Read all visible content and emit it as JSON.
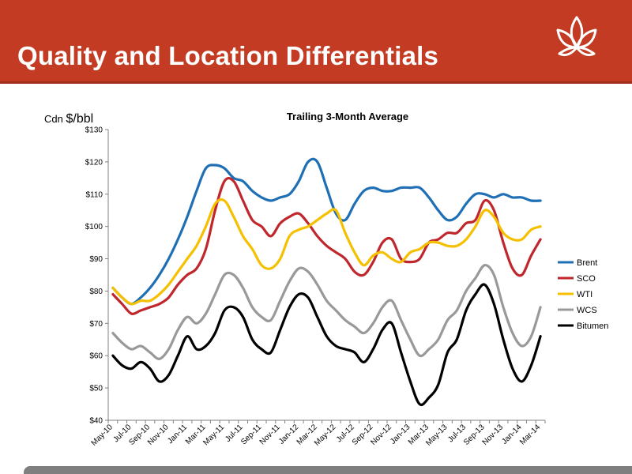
{
  "slide": {
    "title": "Quality and Location Differentials",
    "unit_prefix": "Cdn",
    "unit": "$/bbl",
    "accent_color": "#c23b22"
  },
  "chart_data": {
    "type": "line",
    "title": "Trailing 3-Month Average",
    "ylim": [
      40,
      130
    ],
    "yticks": [
      40,
      50,
      60,
      70,
      80,
      90,
      100,
      110,
      120,
      130
    ],
    "ytick_labels": [
      "$40",
      "$50",
      "$60",
      "$70",
      "$80",
      "$90",
      "$100",
      "$110",
      "$120",
      "$130"
    ],
    "grid": false,
    "legend_position": "right",
    "x_months": [
      "May-10",
      "Jun-10",
      "Jul-10",
      "Aug-10",
      "Sep-10",
      "Oct-10",
      "Nov-10",
      "Dec-10",
      "Jan-11",
      "Feb-11",
      "Mar-11",
      "Apr-11",
      "May-11",
      "Jun-11",
      "Jul-11",
      "Aug-11",
      "Sep-11",
      "Oct-11",
      "Nov-11",
      "Dec-11",
      "Jan-12",
      "Feb-12",
      "Mar-12",
      "Apr-12",
      "May-12",
      "Jun-12",
      "Jul-12",
      "Aug-12",
      "Sep-12",
      "Oct-12",
      "Nov-12",
      "Dec-12",
      "Jan-13",
      "Feb-13",
      "Mar-13",
      "Apr-13",
      "May-13",
      "Jun-13",
      "Jul-13",
      "Aug-13",
      "Sep-13",
      "Oct-13",
      "Nov-13",
      "Dec-13",
      "Jan-14",
      "Feb-14",
      "Mar-14"
    ],
    "x_tick_labels": [
      "May-10",
      "Jul-10",
      "Sep-10",
      "Nov-10",
      "Jan-11",
      "Mar-11",
      "May-11",
      "Jul-11",
      "Sep-11",
      "Nov-11",
      "Jan-12",
      "Mar-12",
      "May-12",
      "Jul-12",
      "Sep-12",
      "Nov-12",
      "Jan-13",
      "Mar-13",
      "May-13",
      "Jul-13",
      "Sep-13",
      "Nov-13",
      "Jan-14",
      "Mar-14"
    ],
    "series": [
      {
        "name": "Brent",
        "color": "#1f6fb5",
        "values": [
          81,
          78,
          76,
          78,
          81,
          85,
          90,
          96,
          103,
          111,
          118,
          119,
          118,
          115,
          114,
          111,
          109,
          108,
          109,
          110,
          114,
          120,
          120,
          112,
          104,
          102,
          107,
          111,
          112,
          111,
          111,
          112,
          112,
          112,
          109,
          105,
          102,
          103,
          107,
          110,
          110,
          109,
          110,
          109,
          109,
          108,
          108
        ]
      },
      {
        "name": "SCO",
        "color": "#c0272d",
        "values": [
          79,
          76,
          73,
          74,
          75,
          76,
          78,
          82,
          85,
          87,
          93,
          105,
          114,
          114,
          108,
          102,
          100,
          97,
          101,
          103,
          104,
          101,
          97,
          94,
          92,
          90,
          86,
          85,
          89,
          95,
          96,
          90,
          89,
          90,
          95,
          96,
          98,
          98,
          101,
          102,
          108,
          105,
          95,
          87,
          85,
          91,
          96
        ]
      },
      {
        "name": "WTI",
        "color": "#f5c000",
        "values": [
          81,
          78,
          76,
          77,
          77,
          79,
          82,
          86,
          90,
          94,
          100,
          107,
          108,
          103,
          97,
          93,
          88,
          87,
          90,
          97,
          99,
          100,
          102,
          104,
          105,
          98,
          92,
          88,
          91,
          92,
          90,
          89,
          92,
          93,
          95,
          95,
          94,
          94,
          96,
          100,
          105,
          103,
          98,
          96,
          96,
          99,
          100
        ]
      },
      {
        "name": "WCS",
        "color": "#999999",
        "values": [
          67,
          64,
          62,
          63,
          61,
          59,
          62,
          68,
          72,
          70,
          73,
          79,
          85,
          85,
          81,
          75,
          72,
          71,
          77,
          83,
          87,
          86,
          82,
          77,
          74,
          71,
          69,
          67,
          70,
          75,
          77,
          71,
          65,
          60,
          62,
          65,
          71,
          74,
          80,
          84,
          88,
          85,
          75,
          67,
          63,
          66,
          75
        ]
      },
      {
        "name": "Bitumen",
        "color": "#000000",
        "values": [
          60,
          57,
          56,
          58,
          56,
          52,
          54,
          60,
          66,
          62,
          63,
          67,
          74,
          75,
          72,
          65,
          62,
          61,
          68,
          75,
          79,
          78,
          72,
          66,
          63,
          62,
          61,
          58,
          62,
          68,
          70,
          61,
          52,
          45,
          47,
          51,
          61,
          65,
          74,
          79,
          82,
          76,
          65,
          56,
          52,
          57,
          66
        ]
      }
    ]
  }
}
